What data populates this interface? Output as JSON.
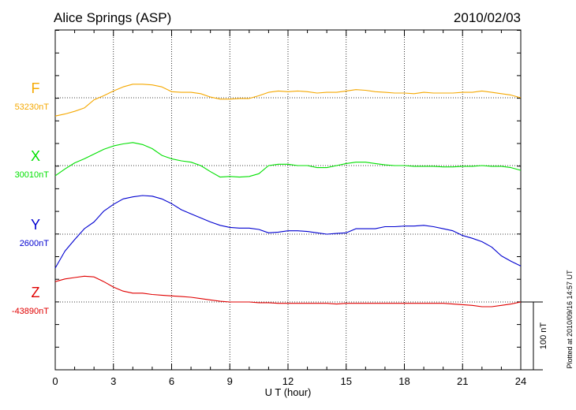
{
  "chart_data": {
    "type": "line",
    "title": "Alice Springs (ASP)",
    "date": "2010/02/03",
    "xlabel": "U T (hour)",
    "xlim": [
      0,
      24
    ],
    "xticks": [
      "0",
      "3",
      "6",
      "9",
      "12",
      "15",
      "18",
      "21",
      "24"
    ],
    "grid": true,
    "scale_bar_label": "100 nT",
    "scale_bar_nt": 100,
    "plotted_note": "Plotted at 2010/09/16 14:57 UT",
    "series": [
      {
        "name": "F",
        "baseline_label": "53230nT",
        "color": "#f5a800",
        "offset_nt": 0,
        "x": [
          0,
          0.5,
          1,
          1.5,
          2,
          2.5,
          3,
          3.5,
          4,
          4.5,
          5,
          5.5,
          6,
          6.5,
          7,
          7.5,
          8,
          8.5,
          9,
          9.5,
          10,
          10.5,
          11,
          11.5,
          12,
          12.5,
          13,
          13.5,
          14,
          14.5,
          15,
          15.5,
          16,
          16.5,
          17,
          17.5,
          18,
          18.5,
          19,
          19.5,
          20,
          20.5,
          21,
          21.5,
          22,
          22.5,
          23,
          23.5,
          24
        ],
        "values": [
          -27,
          -24,
          -20,
          -15,
          -3,
          3,
          10,
          16,
          20,
          20,
          19,
          16,
          9,
          8,
          8,
          6,
          1,
          -2,
          -2,
          -1,
          -1,
          3,
          8,
          10,
          9,
          10,
          9,
          7,
          8,
          8,
          10,
          12,
          11,
          9,
          8,
          7,
          7,
          6,
          8,
          7,
          7,
          7,
          8,
          8,
          10,
          8,
          6,
          4,
          0
        ]
      },
      {
        "name": "X",
        "baseline_label": "30010nT",
        "color": "#00e000",
        "offset_nt": 0,
        "x": [
          0,
          0.5,
          1,
          1.5,
          2,
          2.5,
          3,
          3.5,
          4,
          4.5,
          5,
          5.5,
          6,
          6.5,
          7,
          7.5,
          8,
          8.5,
          9,
          9.5,
          10,
          10.5,
          11,
          11.5,
          12,
          12.5,
          13,
          13.5,
          14,
          14.5,
          15,
          15.5,
          16,
          16.5,
          17,
          17.5,
          18,
          18.5,
          19,
          19.5,
          20,
          20.5,
          21,
          21.5,
          22,
          22.5,
          23,
          23.5,
          24
        ],
        "values": [
          -15,
          -5,
          4,
          10,
          17,
          24,
          29,
          32,
          34,
          31,
          25,
          15,
          10,
          7,
          5,
          0,
          -9,
          -17,
          -16,
          -17,
          -16,
          -12,
          0,
          2,
          2,
          0,
          0,
          -3,
          -3,
          0,
          3,
          5,
          5,
          3,
          1,
          0,
          0,
          -1,
          -1,
          -1,
          -2,
          -2,
          -1,
          -1,
          0,
          -1,
          -1,
          -3,
          -7
        ]
      },
      {
        "name": "Y",
        "baseline_label": "2600nT",
        "color": "#0000d0",
        "offset_nt": 0,
        "x": [
          0,
          0.5,
          1,
          1.5,
          2,
          2.5,
          3,
          3.5,
          4,
          4.5,
          5,
          5.5,
          6,
          6.5,
          7,
          7.5,
          8,
          8.5,
          9,
          9.5,
          10,
          10.5,
          11,
          11.5,
          12,
          12.5,
          13,
          13.5,
          14,
          14.5,
          15,
          15.5,
          16,
          16.5,
          17,
          17.5,
          18,
          18.5,
          19,
          19.5,
          20,
          20.5,
          21,
          21.5,
          22,
          22.5,
          23,
          23.5,
          24
        ],
        "values": [
          -50,
          -25,
          -8,
          8,
          18,
          34,
          44,
          52,
          55,
          57,
          56,
          52,
          45,
          36,
          30,
          24,
          18,
          13,
          10,
          9,
          9,
          7,
          2,
          3,
          5,
          5,
          4,
          2,
          0,
          1,
          2,
          8,
          8,
          8,
          11,
          11,
          12,
          12,
          13,
          11,
          8,
          5,
          -2,
          -6,
          -11,
          -19,
          -32,
          -40,
          -47
        ]
      },
      {
        "name": "Z",
        "baseline_label": "-43890nT",
        "color": "#e00000",
        "offset_nt": 0,
        "x": [
          0,
          0.5,
          1,
          1.5,
          2,
          2.5,
          3,
          3.5,
          4,
          4.5,
          5,
          5.5,
          6,
          6.5,
          7,
          7.5,
          8,
          8.5,
          9,
          9.5,
          10,
          10.5,
          11,
          11.5,
          12,
          12.5,
          13,
          13.5,
          14,
          14.5,
          15,
          15.5,
          16,
          16.5,
          17,
          17.5,
          18,
          18.5,
          19,
          19.5,
          20,
          20.5,
          21,
          21.5,
          22,
          22.5,
          23,
          23.5,
          24
        ],
        "values": [
          30,
          34,
          36,
          38,
          37,
          30,
          22,
          16,
          13,
          13,
          11,
          10,
          9,
          8,
          7,
          5,
          3,
          1,
          0,
          0,
          0,
          -1,
          -1,
          -2,
          -2,
          -2,
          -2,
          -2,
          -2,
          -3,
          -2,
          -2,
          -2,
          -2,
          -2,
          -2,
          -2,
          -2,
          -2,
          -2,
          -2,
          -3,
          -4,
          -5,
          -7,
          -7,
          -5,
          -3,
          0
        ]
      }
    ]
  }
}
